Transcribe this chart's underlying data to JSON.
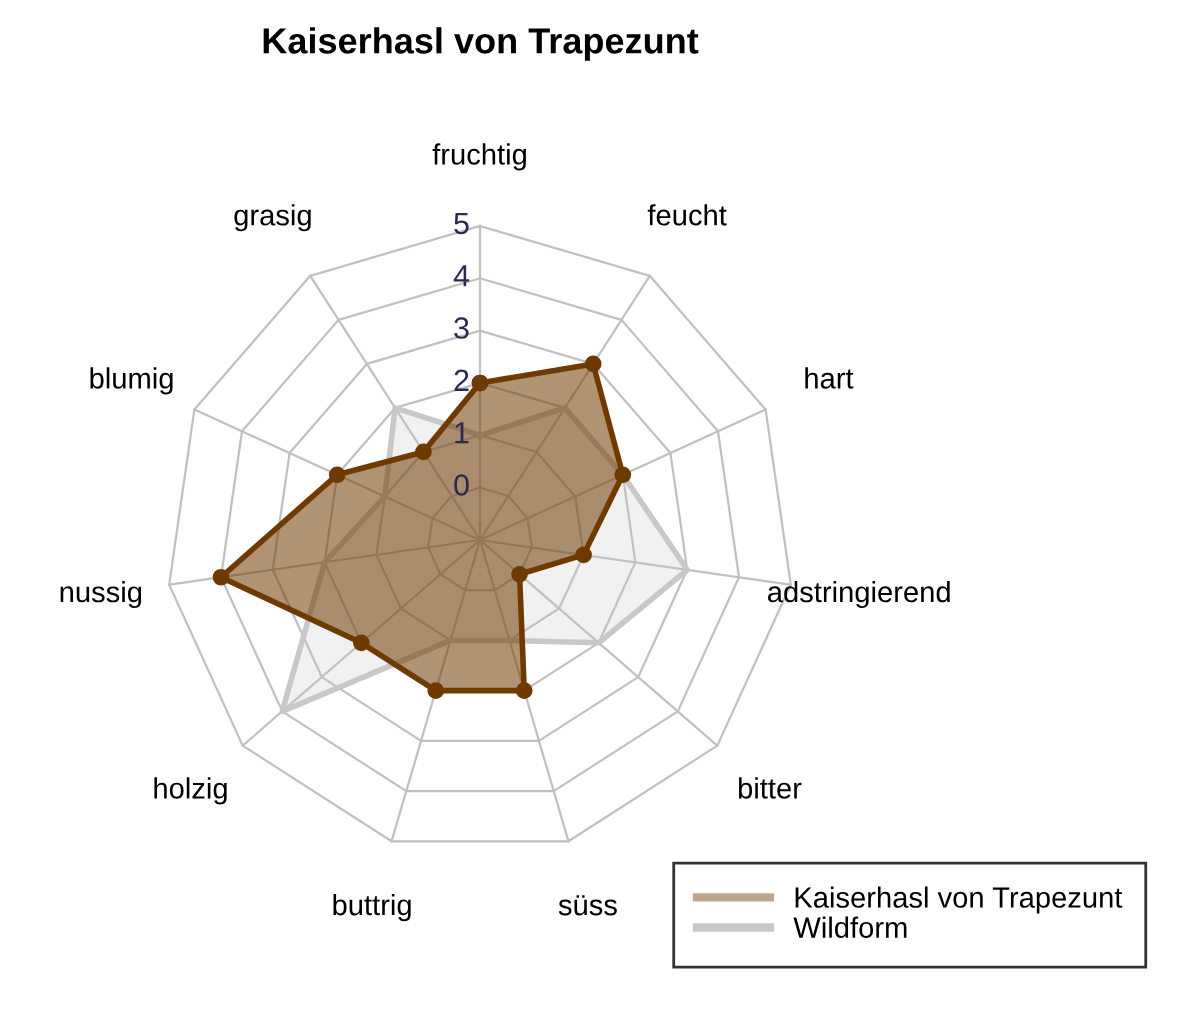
{
  "chart_data": {
    "type": "radar",
    "title": "Kaiserhasl von Trapezunt",
    "categories": [
      "fruchtig",
      "feucht",
      "hart",
      "adstringierend",
      "bitter",
      "süss",
      "buttrig",
      "holzig",
      "nussig",
      "blumig",
      "grasig"
    ],
    "ylim": [
      -1,
      5
    ],
    "yticks": [
      0,
      1,
      2,
      3,
      4,
      5
    ],
    "grid": true,
    "legend": "bottom right",
    "series": [
      {
        "name": "Kaiserhasl von Trapezunt",
        "color": "#6e3a00",
        "marker": "circle",
        "values": [
          2,
          3,
          2,
          1,
          0,
          2,
          2,
          2,
          4,
          2,
          1
        ]
      },
      {
        "name": "Wildform",
        "color": "#c8c8c8",
        "marker": "none",
        "values": [
          1,
          2,
          2,
          3,
          2,
          1,
          1,
          4,
          2,
          1,
          2
        ]
      }
    ]
  }
}
